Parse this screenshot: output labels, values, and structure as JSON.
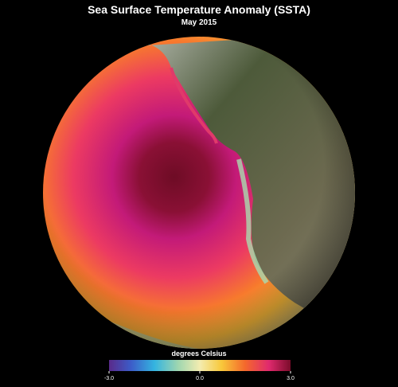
{
  "title": "Sea Surface Temperature Anomaly (SSTA)",
  "subtitle": "May 2015",
  "colorbar": {
    "label": "degrees Celsius",
    "range": [
      -3,
      3
    ],
    "ticks": [
      {
        "value": -3,
        "label": "-3.0"
      },
      {
        "value": 0,
        "label": "0.0"
      },
      {
        "value": 3,
        "label": "3.0"
      }
    ]
  }
}
